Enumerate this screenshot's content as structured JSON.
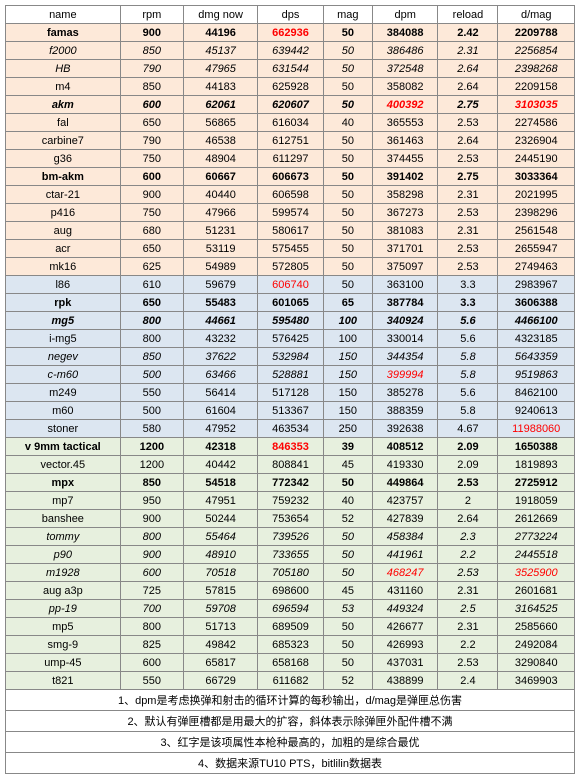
{
  "columns": [
    "name",
    "rpm",
    "dmg now",
    "dps",
    "mag",
    "dpm",
    "reload",
    "d/mag"
  ],
  "group_colors": {
    "orange": "#fde9d9",
    "blue": "#dce6f1",
    "green": "#e7f0de"
  },
  "rows": [
    {
      "g": "orange",
      "bold": true,
      "italic": false,
      "name": "famas",
      "rpm": 900,
      "dmg": 44196,
      "dps": 662936,
      "dps_r": 1,
      "mag": 50,
      "dpm": 384088,
      "rel": 2.42,
      "dmag": 2209788
    },
    {
      "g": "orange",
      "bold": false,
      "italic": true,
      "name": "f2000",
      "rpm": 850,
      "dmg": 45137,
      "dps": 639442,
      "mag": 50,
      "dpm": 386486,
      "rel": 2.31,
      "dmag": 2256854
    },
    {
      "g": "orange",
      "bold": false,
      "italic": true,
      "name": "HB",
      "rpm": 790,
      "dmg": 47965,
      "dps": 631544,
      "mag": 50,
      "dpm": 372548,
      "rel": 2.64,
      "dmag": 2398268
    },
    {
      "g": "orange",
      "bold": false,
      "italic": false,
      "name": "m4",
      "rpm": 850,
      "dmg": 44183,
      "dps": 625928,
      "mag": 50,
      "dpm": 358082,
      "rel": 2.64,
      "dmag": 2209158
    },
    {
      "g": "orange",
      "bold": true,
      "italic": true,
      "name": "akm",
      "rpm": 600,
      "dmg": 62061,
      "dps": 620607,
      "mag": 50,
      "dpm": 400392,
      "dpm_r": 1,
      "rel": 2.75,
      "dmag": 3103035,
      "dmag_r": 1
    },
    {
      "g": "orange",
      "bold": false,
      "italic": false,
      "name": "fal",
      "rpm": 650,
      "dmg": 56865,
      "dps": 616034,
      "mag": 40,
      "dpm": 365553,
      "rel": 2.53,
      "dmag": 2274586
    },
    {
      "g": "orange",
      "bold": false,
      "italic": false,
      "name": "carbine7",
      "rpm": 790,
      "dmg": 46538,
      "dps": 612751,
      "mag": 50,
      "dpm": 361463,
      "rel": 2.64,
      "dmag": 2326904
    },
    {
      "g": "orange",
      "bold": false,
      "italic": false,
      "name": "g36",
      "rpm": 750,
      "dmg": 48904,
      "dps": 611297,
      "mag": 50,
      "dpm": 374455,
      "rel": 2.53,
      "dmag": 2445190
    },
    {
      "g": "orange",
      "bold": true,
      "italic": false,
      "name": "bm-akm",
      "rpm": 600,
      "dmg": 60667,
      "dps": 606673,
      "mag": 50,
      "dpm": 391402,
      "rel": 2.75,
      "dmag": 3033364
    },
    {
      "g": "orange",
      "bold": false,
      "italic": false,
      "name": "ctar-21",
      "rpm": 900,
      "dmg": 40440,
      "dps": 606598,
      "mag": 50,
      "dpm": 358298,
      "rel": 2.31,
      "dmag": 2021995
    },
    {
      "g": "orange",
      "bold": false,
      "italic": false,
      "name": "p416",
      "rpm": 750,
      "dmg": 47966,
      "dps": 599574,
      "mag": 50,
      "dpm": 367273,
      "rel": 2.53,
      "dmag": 2398296
    },
    {
      "g": "orange",
      "bold": false,
      "italic": false,
      "name": "aug",
      "rpm": 680,
      "dmg": 51231,
      "dps": 580617,
      "mag": 50,
      "dpm": 381083,
      "rel": 2.31,
      "dmag": 2561548
    },
    {
      "g": "orange",
      "bold": false,
      "italic": false,
      "name": "acr",
      "rpm": 650,
      "dmg": 53119,
      "dps": 575455,
      "mag": 50,
      "dpm": 371701,
      "rel": 2.53,
      "dmag": 2655947
    },
    {
      "g": "orange",
      "bold": false,
      "italic": false,
      "name": "mk16",
      "rpm": 625,
      "dmg": 54989,
      "dps": 572805,
      "mag": 50,
      "dpm": 375097,
      "rel": 2.53,
      "dmag": 2749463
    },
    {
      "g": "blue",
      "bold": false,
      "italic": false,
      "name": "l86",
      "rpm": 610,
      "dmg": 59679,
      "dps": 606740,
      "dps_r": 1,
      "mag": 50,
      "dpm": 363100,
      "rel": 3.3,
      "dmag": 2983967
    },
    {
      "g": "blue",
      "bold": true,
      "italic": false,
      "name": "rpk",
      "rpm": 650,
      "dmg": 55483,
      "dps": 601065,
      "mag": 65,
      "dpm": 387784,
      "rel": 3.3,
      "dmag": 3606388
    },
    {
      "g": "blue",
      "bold": true,
      "italic": true,
      "name": "mg5",
      "rpm": 800,
      "dmg": 44661,
      "dps": 595480,
      "mag": 100,
      "dpm": 340924,
      "rel": 5.6,
      "dmag": 4466100
    },
    {
      "g": "blue",
      "bold": false,
      "italic": false,
      "name": "i-mg5",
      "rpm": 800,
      "dmg": 43232,
      "dps": 576425,
      "mag": 100,
      "dpm": 330014,
      "rel": 5.6,
      "dmag": 4323185
    },
    {
      "g": "blue",
      "bold": false,
      "italic": true,
      "name": "negev",
      "rpm": 850,
      "dmg": 37622,
      "dps": 532984,
      "mag": 150,
      "dpm": 344354,
      "rel": 5.8,
      "dmag": 5643359
    },
    {
      "g": "blue",
      "bold": false,
      "italic": true,
      "name": "c-m60",
      "rpm": 500,
      "dmg": 63466,
      "dps": 528881,
      "mag": 150,
      "dpm": 399994,
      "dpm_r": 1,
      "rel": 5.8,
      "dmag": 9519863
    },
    {
      "g": "blue",
      "bold": false,
      "italic": false,
      "name": "m249",
      "rpm": 550,
      "dmg": 56414,
      "dps": 517128,
      "mag": 150,
      "dpm": 385278,
      "rel": 5.6,
      "dmag": 8462100
    },
    {
      "g": "blue",
      "bold": false,
      "italic": false,
      "name": "m60",
      "rpm": 500,
      "dmg": 61604,
      "dps": 513367,
      "mag": 150,
      "dpm": 388359,
      "rel": 5.8,
      "dmag": 9240613
    },
    {
      "g": "blue",
      "bold": false,
      "italic": false,
      "name": "stoner",
      "rpm": 580,
      "dmg": 47952,
      "dps": 463534,
      "mag": 250,
      "dpm": 392638,
      "rel": 4.67,
      "dmag": 11988060,
      "dmag_r": 1
    },
    {
      "g": "green",
      "bold": true,
      "italic": false,
      "name": "v 9mm tactical",
      "rpm": 1200,
      "dmg": 42318,
      "dps": 846353,
      "dps_r": 1,
      "mag": 39,
      "dpm": 408512,
      "rel": 2.09,
      "dmag": 1650388
    },
    {
      "g": "green",
      "bold": false,
      "italic": false,
      "name": "vector.45",
      "rpm": 1200,
      "dmg": 40442,
      "dps": 808841,
      "mag": 45,
      "dpm": 419330,
      "rel": 2.09,
      "dmag": 1819893
    },
    {
      "g": "green",
      "bold": true,
      "italic": false,
      "name": "mpx",
      "rpm": 850,
      "dmg": 54518,
      "dps": 772342,
      "mag": 50,
      "dpm": 449864,
      "rel": 2.53,
      "dmag": 2725912
    },
    {
      "g": "green",
      "bold": false,
      "italic": false,
      "name": "mp7",
      "rpm": 950,
      "dmg": 47951,
      "dps": 759232,
      "mag": 40,
      "dpm": 423757,
      "rel": 2,
      "dmag": 1918059
    },
    {
      "g": "green",
      "bold": false,
      "italic": false,
      "name": "banshee",
      "rpm": 900,
      "dmg": 50244,
      "dps": 753654,
      "mag": 52,
      "dpm": 427839,
      "rel": 2.64,
      "dmag": 2612669
    },
    {
      "g": "green",
      "bold": false,
      "italic": true,
      "name": "tommy",
      "rpm": 800,
      "dmg": 55464,
      "dps": 739526,
      "mag": 50,
      "dpm": 458384,
      "rel": 2.3,
      "dmag": 2773224
    },
    {
      "g": "green",
      "bold": false,
      "italic": true,
      "name": "p90",
      "rpm": 900,
      "dmg": 48910,
      "dps": 733655,
      "mag": 50,
      "dpm": 441961,
      "rel": 2.2,
      "dmag": 2445518
    },
    {
      "g": "green",
      "bold": false,
      "italic": true,
      "name": "m1928",
      "rpm": 600,
      "dmg": 70518,
      "dps": 705180,
      "mag": 50,
      "dpm": 468247,
      "dpm_r": 1,
      "rel": 2.53,
      "dmag": 3525900,
      "dmag_r": 1
    },
    {
      "g": "green",
      "bold": false,
      "italic": false,
      "name": "aug a3p",
      "rpm": 725,
      "dmg": 57815,
      "dps": 698600,
      "mag": 45,
      "dpm": 431160,
      "rel": 2.31,
      "dmag": 2601681
    },
    {
      "g": "green",
      "bold": false,
      "italic": true,
      "name": "pp-19",
      "rpm": 700,
      "dmg": 59708,
      "dps": 696594,
      "mag": 53,
      "dpm": 449324,
      "rel": 2.5,
      "dmag": 3164525
    },
    {
      "g": "green",
      "bold": false,
      "italic": false,
      "name": "mp5",
      "rpm": 800,
      "dmg": 51713,
      "dps": 689509,
      "mag": 50,
      "dpm": 426677,
      "rel": 2.31,
      "dmag": 2585660
    },
    {
      "g": "green",
      "bold": false,
      "italic": false,
      "name": "smg-9",
      "rpm": 825,
      "dmg": 49842,
      "dps": 685323,
      "mag": 50,
      "dpm": 426993,
      "rel": 2.2,
      "dmag": 2492084
    },
    {
      "g": "green",
      "bold": false,
      "italic": false,
      "name": "ump-45",
      "rpm": 600,
      "dmg": 65817,
      "dps": 658168,
      "mag": 50,
      "dpm": 437031,
      "rel": 2.53,
      "dmag": 3290840
    },
    {
      "g": "green",
      "bold": false,
      "italic": false,
      "name": "t821",
      "rpm": 550,
      "dmg": 66729,
      "dps": 611682,
      "mag": 52,
      "dpm": 438899,
      "rel": 2.4,
      "dmag": 3469903
    }
  ],
  "footers": [
    "1、dpm是考虑换弹和射击的循环计算的每秒输出，d/mag是弹匣总伤害",
    "2、默认有弹匣槽都是用最大的扩容，斜体表示除弹匣外配件槽不满",
    "3、红字是该项属性本枪种最高的，加粗的是综合最优",
    "4、数据来源TU10 PTS，bitlilin数据表"
  ]
}
